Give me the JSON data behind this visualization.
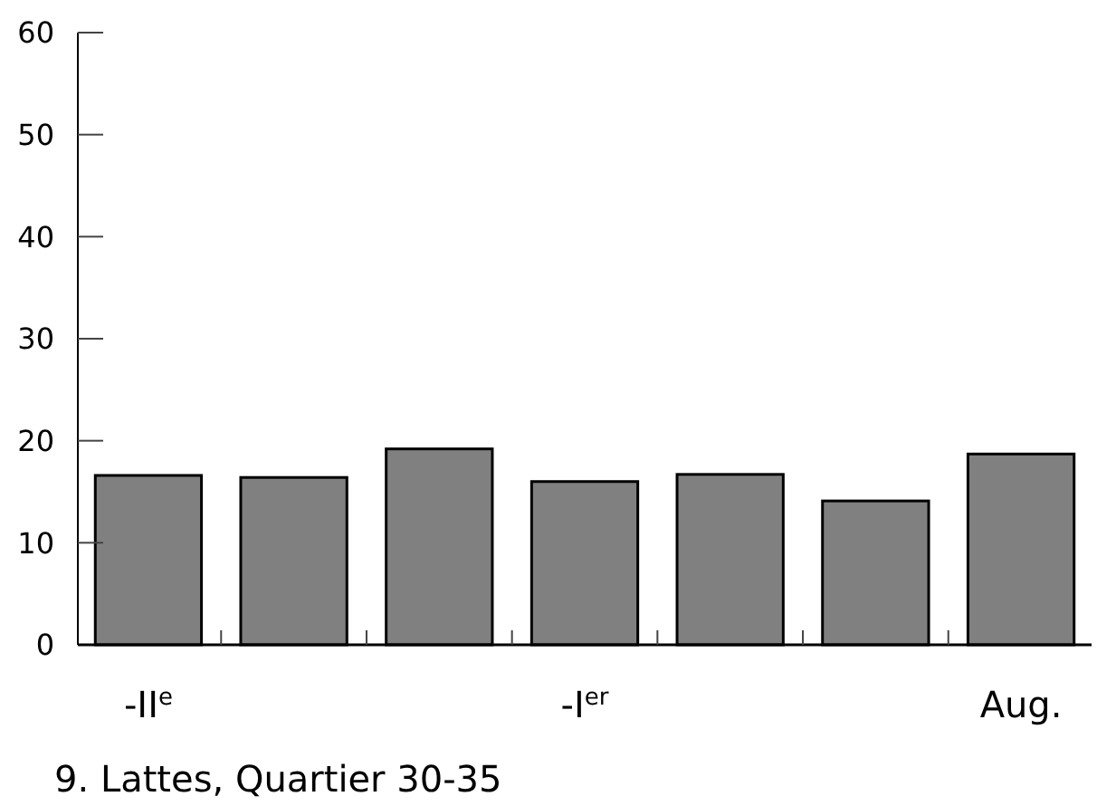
{
  "chart_data": {
    "type": "bar",
    "title": "9. Lattes, Quartier 30-35",
    "categories": [
      "-II$^{e}$",
      null,
      null,
      "-I$^{er}$",
      null,
      null,
      "Aug."
    ],
    "values": [
      16.6,
      16.4,
      19.2,
      16.0,
      16.7,
      14.1,
      18.7
    ],
    "color": "#808080",
    "ylim": [
      0,
      60
    ],
    "yticks": [
      0,
      10,
      20,
      30,
      40,
      50,
      60
    ],
    "grid": false
  }
}
